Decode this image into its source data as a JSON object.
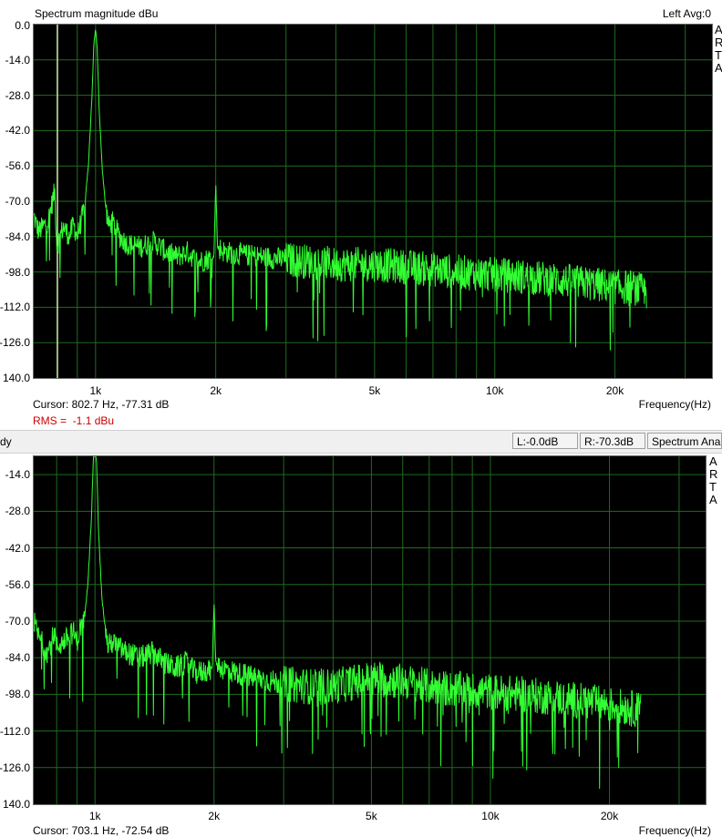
{
  "top": {
    "title": "Spectrum magnitude dBu",
    "channel": "Left  Avg:0",
    "cursor": "Cursor:  802.7 Hz, -77.31 dB",
    "rms_label": "RMS =",
    "rms_value": "-1.1 dBu",
    "x_axis_label": "Frequency(Hz)",
    "side_buttons": [
      "A",
      "R",
      "T",
      "A"
    ]
  },
  "bottom": {
    "cursor": "Cursor:  703.1 Hz, -72.54 dB",
    "x_axis_label": "Frequency(Hz)",
    "side_buttons": [
      "A",
      "R",
      "T",
      "A"
    ]
  },
  "statusbar": {
    "ready": "dy",
    "left_level": "L:-0.0dB",
    "right_level": "R:-70.3dB",
    "mode": "Spectrum Ana"
  },
  "colors": {
    "plot_background": "#000000",
    "grid": "#1f6b1f",
    "trace": "#33ff33",
    "marker": "#ffffcc"
  },
  "chart_data": [
    {
      "type": "line",
      "title": "Spectrum magnitude dBu",
      "xlabel": "Frequency(Hz)",
      "ylabel": "",
      "x_scale": "log",
      "xlim": [
        700,
        35000
      ],
      "ylim": [
        -140,
        0
      ],
      "y_ticks": [
        "0.0",
        "-14.0",
        "-28.0",
        "-42.0",
        "-56.0",
        "-70.0",
        "-84.0",
        "-98.0",
        "-112.0",
        "-126.0",
        "140.0"
      ],
      "x_ticks": [
        {
          "value": 1000,
          "label": "1k"
        },
        {
          "value": 2000,
          "label": "2k"
        },
        {
          "value": 5000,
          "label": "5k"
        },
        {
          "value": 10000,
          "label": "10k"
        },
        {
          "value": 20000,
          "label": "20k"
        }
      ],
      "grid": true,
      "marker_freq": 802.7,
      "series": [
        {
          "x": [
            700,
            720,
            760,
            790,
            800,
            830,
            860,
            880,
            900,
            920,
            940,
            960,
            980,
            990,
            1000,
            1010,
            1020,
            1040,
            1060,
            1080,
            1100,
            1150,
            1200,
            1300,
            1400,
            1500,
            1600,
            1700,
            1800,
            1900,
            1980,
            2000,
            2020,
            2100,
            2300,
            2600,
            3000,
            3500,
            4000,
            5000,
            6000,
            7000,
            8000,
            10000,
            12000,
            14000,
            16000,
            18000,
            20000,
            22000,
            24000
          ],
          "y": [
            -76,
            -82,
            -78,
            -66,
            -88,
            -80,
            -84,
            -79,
            -84,
            -78,
            -72,
            -55,
            -28,
            -8,
            -1,
            -10,
            -32,
            -58,
            -72,
            -80,
            -78,
            -84,
            -87,
            -88,
            -86,
            -90,
            -92,
            -90,
            -94,
            -93,
            -92,
            -62,
            -88,
            -90,
            -91,
            -92,
            -93,
            -94,
            -95,
            -95,
            -96,
            -97,
            -98,
            -99,
            -100,
            -101,
            -102,
            -103,
            -104,
            -104,
            -106
          ]
        }
      ]
    },
    {
      "type": "line",
      "title": "",
      "xlabel": "Frequency(Hz)",
      "ylabel": "",
      "x_scale": "log",
      "xlim": [
        700,
        35000
      ],
      "ylim": [
        -140,
        -7
      ],
      "y_ticks": [
        "-14.0",
        "-28.0",
        "-42.0",
        "-56.0",
        "-70.0",
        "-84.0",
        "-98.0",
        "-112.0",
        "-126.0",
        "140.0"
      ],
      "x_ticks": [
        {
          "value": 1000,
          "label": "1k"
        },
        {
          "value": 2000,
          "label": "2k"
        },
        {
          "value": 5000,
          "label": "5k"
        },
        {
          "value": 10000,
          "label": "10k"
        },
        {
          "value": 20000,
          "label": "20k"
        }
      ],
      "grid": true,
      "series": [
        {
          "x": [
            700,
            720,
            760,
            790,
            800,
            830,
            860,
            880,
            900,
            920,
            940,
            960,
            980,
            990,
            1000,
            1010,
            1020,
            1040,
            1060,
            1080,
            1100,
            1150,
            1200,
            1300,
            1400,
            1500,
            1600,
            1700,
            1800,
            1900,
            1980,
            2000,
            2020,
            2100,
            2300,
            2600,
            3000,
            3500,
            4000,
            5000,
            6000,
            7000,
            8000,
            10000,
            12000,
            14000,
            16000,
            18000,
            20000,
            22000,
            24000
          ],
          "y": [
            -70,
            -76,
            -82,
            -74,
            -80,
            -78,
            -76,
            -74,
            -78,
            -72,
            -70,
            -55,
            -30,
            -8,
            -1,
            -10,
            -34,
            -60,
            -72,
            -80,
            -78,
            -80,
            -82,
            -84,
            -82,
            -86,
            -88,
            -86,
            -90,
            -89,
            -88,
            -62,
            -86,
            -88,
            -90,
            -92,
            -94,
            -95,
            -95,
            -92,
            -93,
            -95,
            -96,
            -97,
            -98,
            -99,
            -100,
            -101,
            -102,
            -103,
            -104
          ]
        }
      ]
    }
  ]
}
